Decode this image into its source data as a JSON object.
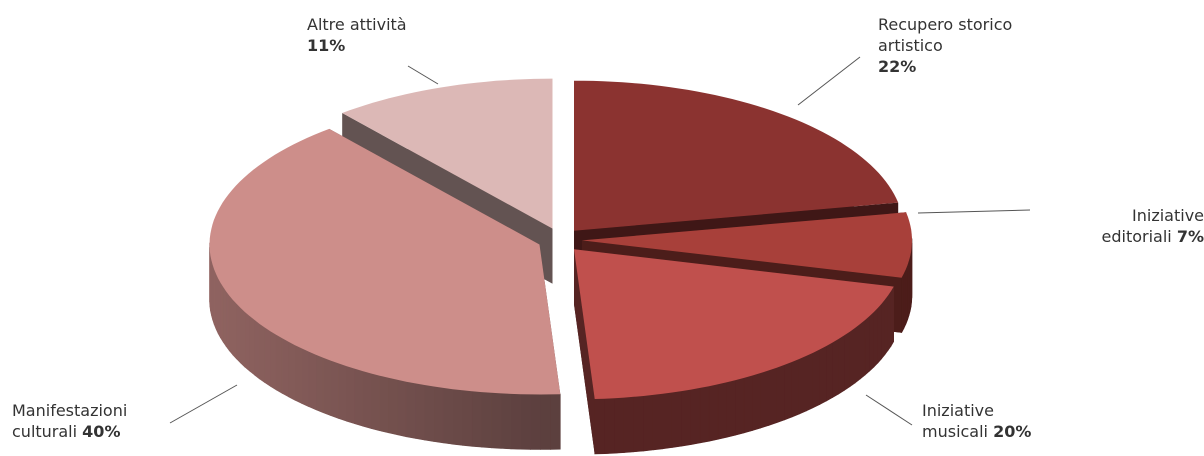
{
  "chart_data": {
    "type": "pie",
    "categories": [
      "Recupero storico artistico",
      "Iniziative editoriali",
      "Iniziative musicali",
      "Manifestazioni culturali",
      "Altre attività"
    ],
    "values": [
      22,
      7,
      20,
      40,
      11
    ],
    "value_labels": [
      "22%",
      "7%",
      "20%",
      "40%",
      "11%"
    ],
    "colors": [
      "#8b3330",
      "#a8403a",
      "#c0504d",
      "#cd8e8a",
      "#dcb8b6"
    ]
  }
}
